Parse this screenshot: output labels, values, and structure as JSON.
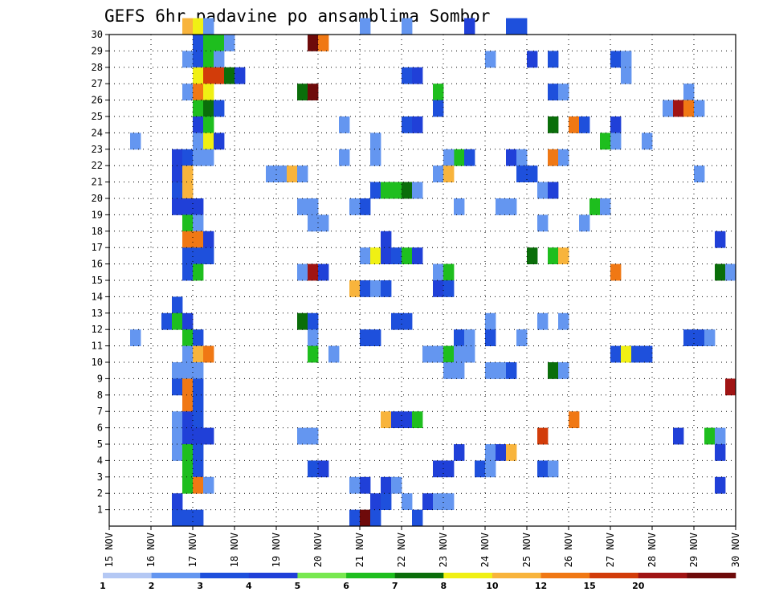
{
  "chart_data": {
    "type": "heatmap",
    "title": "GEFS 6hr padavine po ansamblima Sombor",
    "xlabel": "",
    "ylabel": "",
    "x_ticks": [
      "15 NOV",
      "16 NOV",
      "17 NOV",
      "18 NOV",
      "19 NOV",
      "20 NOV",
      "21 NOV",
      "22 NOV",
      "23 NOV",
      "24 NOV",
      "25 NOV",
      "26 NOV",
      "27 NOV",
      "28 NOV",
      "29 NOV",
      "30 NOV"
    ],
    "y_ticks": [
      1,
      2,
      3,
      4,
      5,
      6,
      7,
      8,
      9,
      10,
      11,
      12,
      13,
      14,
      15,
      16,
      17,
      18,
      19,
      20,
      21,
      22,
      23,
      24,
      25,
      26,
      27,
      28,
      29,
      30
    ],
    "xlim": [
      "15 NOV",
      "30 NOV"
    ],
    "ylim": [
      0,
      30
    ],
    "time_steps_per_day": 4,
    "grid": true,
    "colorbar": {
      "labels": [
        "1",
        "2",
        "3",
        "4",
        "5",
        "6",
        "7",
        "8",
        "10",
        "12",
        "15",
        "20"
      ],
      "colors": [
        "#b4c8f4",
        "#6496f0",
        "#1e50dc",
        "#2040d8",
        "#78e850",
        "#1ebe1e",
        "#0a6e0a",
        "#f0f014",
        "#f8b43c",
        "#f07814",
        "#d23c0a",
        "#a01414",
        "#6e0a0a"
      ]
    },
    "cells": [
      [
        7,
        30,
        8
      ],
      [
        8,
        30,
        7
      ],
      [
        9,
        30,
        1
      ],
      [
        24,
        30,
        1
      ],
      [
        28,
        30,
        1
      ],
      [
        34,
        30,
        3
      ],
      [
        38,
        30,
        2
      ],
      [
        39,
        30,
        2
      ],
      [
        8,
        29,
        2
      ],
      [
        9,
        29,
        5
      ],
      [
        10,
        29,
        5
      ],
      [
        11,
        29,
        1
      ],
      [
        19,
        29,
        12
      ],
      [
        20,
        29,
        9
      ],
      [
        7,
        28,
        1
      ],
      [
        8,
        28,
        2
      ],
      [
        9,
        28,
        5
      ],
      [
        10,
        28,
        1
      ],
      [
        36,
        28,
        1
      ],
      [
        40,
        28,
        3
      ],
      [
        42,
        28,
        2
      ],
      [
        48,
        28,
        2
      ],
      [
        49,
        28,
        1
      ],
      [
        8,
        27,
        7
      ],
      [
        9,
        27,
        10
      ],
      [
        10,
        27,
        10
      ],
      [
        11,
        27,
        6
      ],
      [
        12,
        27,
        3
      ],
      [
        28,
        27,
        2
      ],
      [
        29,
        27,
        3
      ],
      [
        49,
        27,
        1
      ],
      [
        7,
        26,
        1
      ],
      [
        8,
        26,
        9
      ],
      [
        9,
        26,
        7
      ],
      [
        18,
        26,
        6
      ],
      [
        19,
        26,
        12
      ],
      [
        31,
        26,
        5
      ],
      [
        42,
        26,
        2
      ],
      [
        43,
        26,
        1
      ],
      [
        55,
        26,
        1
      ],
      [
        8,
        25,
        5
      ],
      [
        9,
        25,
        6
      ],
      [
        10,
        25,
        2
      ],
      [
        31,
        25,
        2
      ],
      [
        53,
        25,
        1
      ],
      [
        54,
        25,
        11
      ],
      [
        55,
        25,
        9
      ],
      [
        56,
        25,
        1
      ],
      [
        8,
        24,
        3
      ],
      [
        9,
        24,
        5
      ],
      [
        22,
        24,
        1
      ],
      [
        28,
        24,
        2
      ],
      [
        29,
        24,
        3
      ],
      [
        42,
        24,
        6
      ],
      [
        44,
        24,
        9
      ],
      [
        45,
        24,
        2
      ],
      [
        48,
        24,
        3
      ],
      [
        2,
        23,
        1
      ],
      [
        8,
        23,
        1
      ],
      [
        9,
        23,
        7
      ],
      [
        10,
        23,
        3
      ],
      [
        25,
        23,
        1
      ],
      [
        47,
        23,
        5
      ],
      [
        48,
        23,
        1
      ],
      [
        51,
        23,
        1
      ],
      [
        6,
        22,
        3
      ],
      [
        7,
        22,
        2
      ],
      [
        8,
        22,
        1
      ],
      [
        9,
        22,
        1
      ],
      [
        22,
        22,
        1
      ],
      [
        25,
        22,
        1
      ],
      [
        33,
        22,
        5
      ],
      [
        34,
        22,
        2
      ],
      [
        32,
        22,
        1
      ],
      [
        38,
        22,
        3
      ],
      [
        39,
        22,
        1
      ],
      [
        42,
        22,
        9
      ],
      [
        43,
        22,
        1
      ],
      [
        6,
        21,
        3
      ],
      [
        7,
        21,
        8
      ],
      [
        15,
        21,
        1
      ],
      [
        16,
        21,
        1
      ],
      [
        17,
        21,
        8
      ],
      [
        18,
        21,
        1
      ],
      [
        31,
        21,
        1
      ],
      [
        32,
        21,
        8
      ],
      [
        39,
        21,
        2
      ],
      [
        40,
        21,
        2
      ],
      [
        56,
        21,
        1
      ],
      [
        6,
        20,
        2
      ],
      [
        7,
        20,
        8
      ],
      [
        25,
        20,
        2
      ],
      [
        26,
        20,
        5
      ],
      [
        27,
        20,
        5
      ],
      [
        28,
        20,
        6
      ],
      [
        29,
        20,
        1
      ],
      [
        41,
        20,
        1
      ],
      [
        42,
        20,
        3
      ],
      [
        6,
        19,
        3
      ],
      [
        7,
        19,
        3
      ],
      [
        8,
        19,
        3
      ],
      [
        18,
        19,
        1
      ],
      [
        19,
        19,
        1
      ],
      [
        23,
        19,
        1
      ],
      [
        24,
        19,
        2
      ],
      [
        33,
        19,
        1
      ],
      [
        37,
        19,
        1
      ],
      [
        38,
        19,
        1
      ],
      [
        46,
        19,
        5
      ],
      [
        47,
        19,
        1
      ],
      [
        7,
        18,
        5
      ],
      [
        8,
        18,
        1
      ],
      [
        19,
        18,
        1
      ],
      [
        20,
        18,
        1
      ],
      [
        41,
        18,
        1
      ],
      [
        45,
        18,
        1
      ],
      [
        7,
        17,
        9
      ],
      [
        8,
        17,
        9
      ],
      [
        9,
        17,
        3
      ],
      [
        26,
        17,
        3
      ],
      [
        58,
        17,
        3
      ],
      [
        7,
        16,
        2
      ],
      [
        8,
        16,
        2
      ],
      [
        9,
        16,
        2
      ],
      [
        24,
        16,
        1
      ],
      [
        25,
        16,
        7
      ],
      [
        26,
        16,
        3
      ],
      [
        27,
        16,
        2
      ],
      [
        28,
        16,
        5
      ],
      [
        29,
        16,
        3
      ],
      [
        40,
        16,
        6
      ],
      [
        42,
        16,
        5
      ],
      [
        43,
        16,
        8
      ],
      [
        7,
        15,
        2
      ],
      [
        8,
        15,
        5
      ],
      [
        18,
        15,
        1
      ],
      [
        19,
        15,
        11
      ],
      [
        20,
        15,
        3
      ],
      [
        31,
        15,
        1
      ],
      [
        32,
        15,
        5
      ],
      [
        48,
        15,
        9
      ],
      [
        58,
        15,
        6
      ],
      [
        59,
        15,
        1
      ],
      [
        23,
        14,
        8
      ],
      [
        24,
        14,
        2
      ],
      [
        25,
        14,
        1
      ],
      [
        26,
        14,
        2
      ],
      [
        31,
        14,
        3
      ],
      [
        32,
        14,
        2
      ],
      [
        6,
        13,
        2
      ],
      [
        5,
        12,
        2
      ],
      [
        6,
        12,
        5
      ],
      [
        7,
        12,
        3
      ],
      [
        18,
        12,
        6
      ],
      [
        19,
        12,
        2
      ],
      [
        27,
        12,
        2
      ],
      [
        28,
        12,
        2
      ],
      [
        36,
        12,
        1
      ],
      [
        41,
        12,
        1
      ],
      [
        43,
        12,
        1
      ],
      [
        2,
        11,
        1
      ],
      [
        7,
        11,
        5
      ],
      [
        8,
        11,
        2
      ],
      [
        19,
        11,
        1
      ],
      [
        24,
        11,
        2
      ],
      [
        25,
        11,
        2
      ],
      [
        33,
        11,
        2
      ],
      [
        34,
        11,
        1
      ],
      [
        36,
        11,
        2
      ],
      [
        39,
        11,
        1
      ],
      [
        55,
        11,
        2
      ],
      [
        56,
        11,
        2
      ],
      [
        57,
        11,
        1
      ],
      [
        7,
        10,
        1
      ],
      [
        8,
        10,
        8
      ],
      [
        9,
        10,
        9
      ],
      [
        19,
        10,
        5
      ],
      [
        21,
        10,
        1
      ],
      [
        30,
        10,
        1
      ],
      [
        31,
        10,
        1
      ],
      [
        34,
        10,
        1
      ],
      [
        32,
        10,
        5
      ],
      [
        33,
        10,
        1
      ],
      [
        48,
        10,
        2
      ],
      [
        49,
        10,
        7
      ],
      [
        50,
        10,
        2
      ],
      [
        51,
        10,
        2
      ],
      [
        6,
        9,
        1
      ],
      [
        7,
        9,
        1
      ],
      [
        8,
        9,
        1
      ],
      [
        32,
        9,
        1
      ],
      [
        33,
        9,
        1
      ],
      [
        36,
        9,
        1
      ],
      [
        37,
        9,
        1
      ],
      [
        38,
        9,
        2
      ],
      [
        42,
        9,
        6
      ],
      [
        43,
        9,
        1
      ],
      [
        6,
        8,
        2
      ],
      [
        7,
        8,
        9
      ],
      [
        8,
        8,
        2
      ],
      [
        59,
        8,
        11
      ],
      [
        7,
        7,
        9
      ],
      [
        8,
        7,
        2
      ],
      [
        6,
        6,
        1
      ],
      [
        7,
        6,
        3
      ],
      [
        8,
        6,
        2
      ],
      [
        26,
        6,
        8
      ],
      [
        27,
        6,
        3
      ],
      [
        28,
        6,
        3
      ],
      [
        29,
        6,
        5
      ],
      [
        44,
        6,
        9
      ],
      [
        6,
        5,
        1
      ],
      [
        7,
        5,
        3
      ],
      [
        8,
        5,
        3
      ],
      [
        9,
        5,
        3
      ],
      [
        18,
        5,
        1
      ],
      [
        19,
        5,
        1
      ],
      [
        41,
        5,
        10
      ],
      [
        54,
        5,
        3
      ],
      [
        57,
        5,
        5
      ],
      [
        58,
        5,
        1
      ],
      [
        6,
        4,
        1
      ],
      [
        7,
        4,
        5
      ],
      [
        8,
        4,
        2
      ],
      [
        33,
        4,
        3
      ],
      [
        36,
        4,
        1
      ],
      [
        37,
        4,
        3
      ],
      [
        38,
        4,
        8
      ],
      [
        58,
        4,
        3
      ],
      [
        7,
        3,
        5
      ],
      [
        8,
        3,
        2
      ],
      [
        19,
        3,
        2
      ],
      [
        20,
        3,
        3
      ],
      [
        31,
        3,
        3
      ],
      [
        32,
        3,
        3
      ],
      [
        35,
        3,
        2
      ],
      [
        36,
        3,
        1
      ],
      [
        41,
        3,
        2
      ],
      [
        42,
        3,
        1
      ],
      [
        7,
        2,
        5
      ],
      [
        8,
        2,
        9
      ],
      [
        9,
        2,
        1
      ],
      [
        23,
        2,
        1
      ],
      [
        24,
        2,
        3
      ],
      [
        26,
        2,
        3
      ],
      [
        27,
        2,
        1
      ],
      [
        58,
        2,
        3
      ],
      [
        6,
        1,
        3
      ],
      [
        25,
        1,
        3
      ],
      [
        26,
        1,
        2
      ],
      [
        28,
        1,
        1
      ],
      [
        30,
        1,
        3
      ],
      [
        31,
        1,
        1
      ],
      [
        32,
        1,
        1
      ],
      [
        6,
        0,
        2
      ],
      [
        7,
        0,
        2
      ],
      [
        8,
        0,
        2
      ],
      [
        23,
        0,
        2
      ],
      [
        24,
        0,
        12
      ],
      [
        25,
        0,
        2
      ],
      [
        29,
        0,
        2
      ]
    ]
  }
}
